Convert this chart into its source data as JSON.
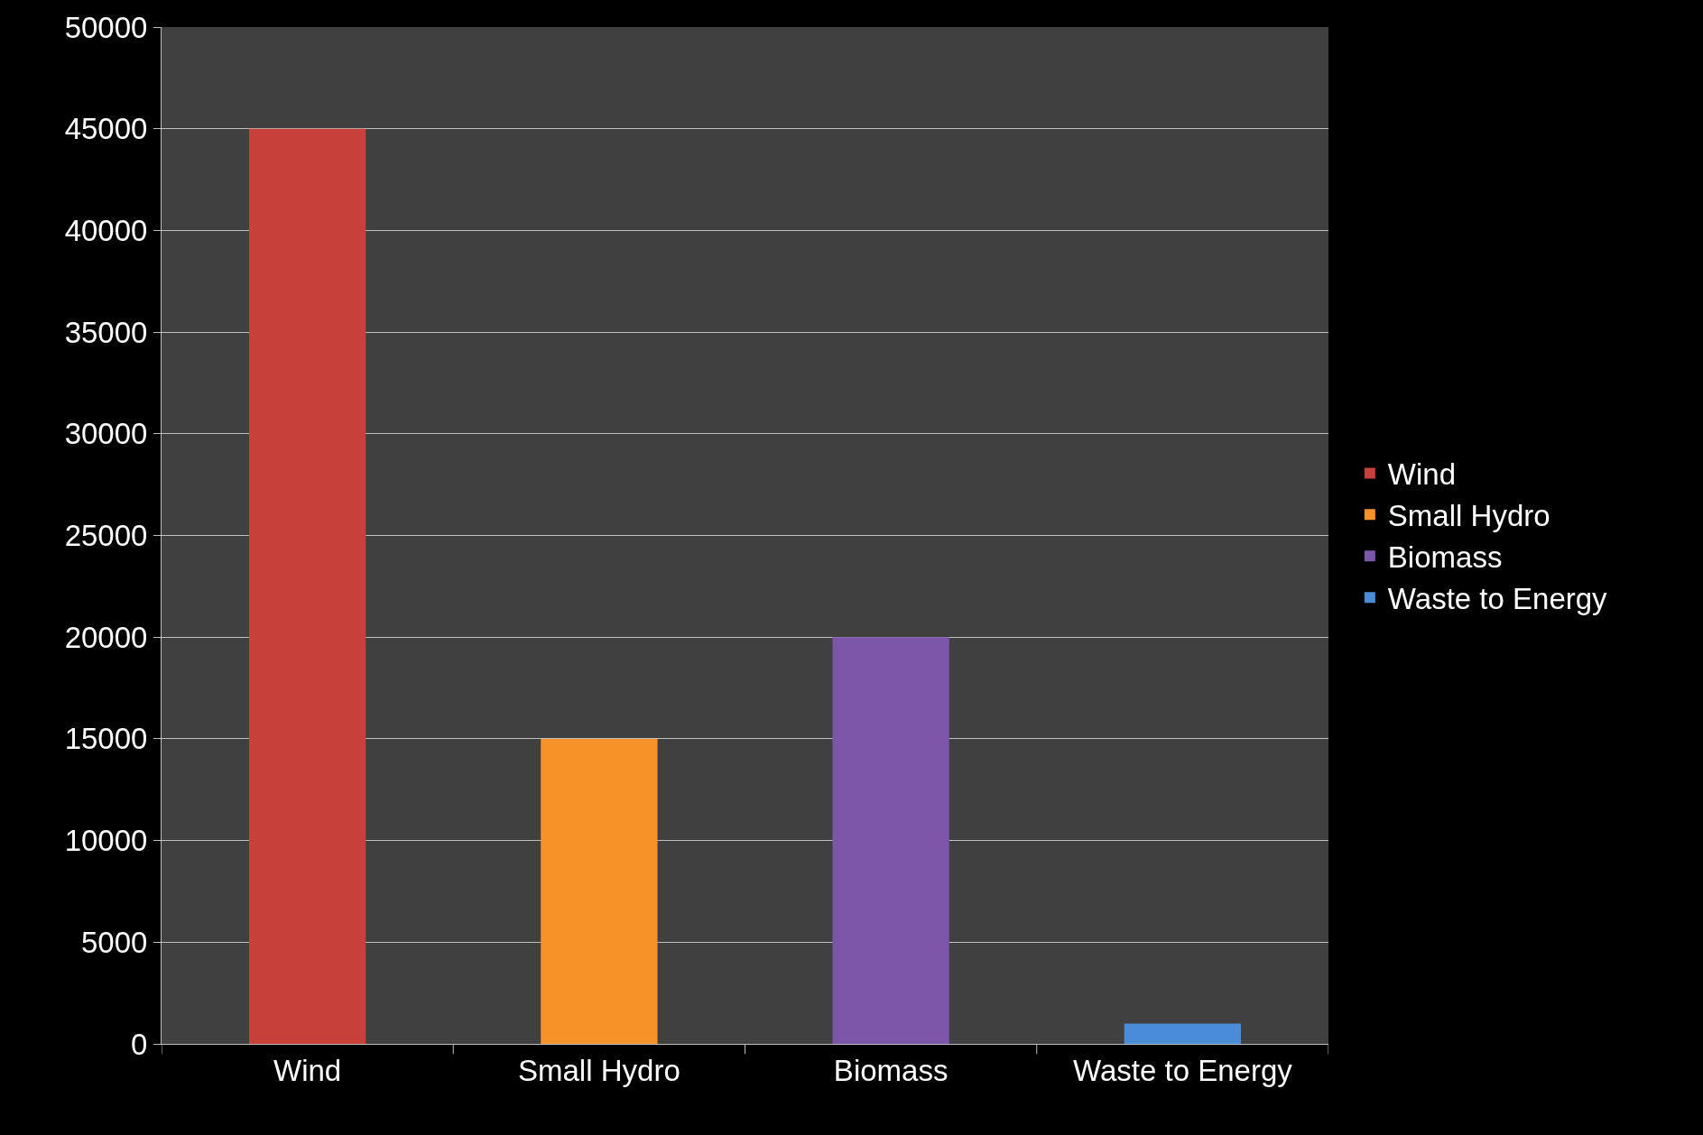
{
  "chart_data": {
    "type": "bar",
    "categories": [
      "Wind",
      "Small Hydro",
      "Biomass",
      "Waste to Energy"
    ],
    "series": [
      {
        "name": "Wind",
        "color": "#c8403a",
        "values": [
          45000,
          null,
          null,
          null
        ]
      },
      {
        "name": "Small Hydro",
        "color": "#f59228",
        "values": [
          null,
          15000,
          null,
          null
        ]
      },
      {
        "name": "Biomass",
        "color": "#7c56a8",
        "values": [
          null,
          null,
          20000,
          null
        ]
      },
      {
        "name": "Waste to Energy",
        "color": "#4a8cd8",
        "values": [
          null,
          null,
          null,
          1000
        ]
      }
    ],
    "ylim": [
      0,
      50000
    ],
    "yticks": [
      0,
      5000,
      10000,
      15000,
      20000,
      25000,
      30000,
      35000,
      40000,
      45000,
      50000
    ],
    "grid": "y",
    "legend": "right"
  }
}
